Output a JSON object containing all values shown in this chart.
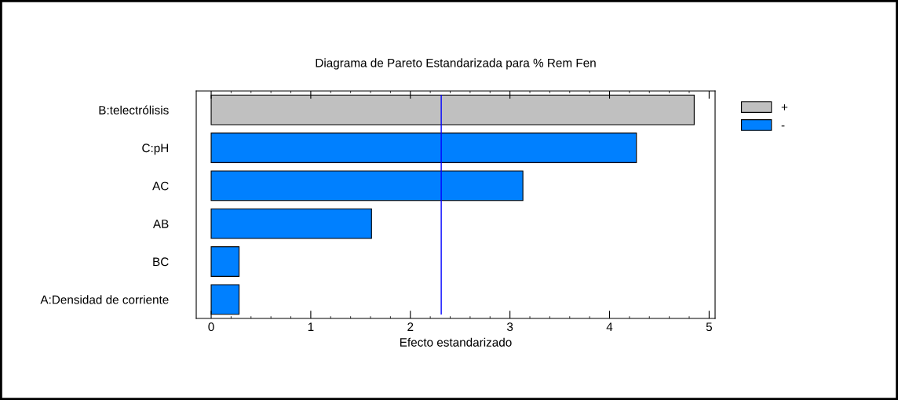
{
  "chart_data": {
    "type": "bar",
    "orientation": "horizontal",
    "title": "Diagrama de Pareto Estandarizada para % Rem Fen",
    "xlabel": "Efecto estandarizado",
    "categories": [
      "B:telectrólisis",
      "C:pH",
      "AC",
      "AB",
      "BC",
      "A:Densidad de corriente"
    ],
    "series": [
      {
        "name": "+",
        "color": "#c0c0c0",
        "values": [
          4.85,
          null,
          null,
          null,
          null,
          null
        ]
      },
      {
        "name": "-",
        "color": "#0080ff",
        "values": [
          null,
          4.27,
          3.13,
          1.61,
          0.28,
          0.28
        ]
      }
    ],
    "xlim": [
      -0.15,
      5.06
    ],
    "xticks": [
      0,
      1,
      2,
      3,
      4,
      5
    ],
    "ref_lines": [
      {
        "axis": "x",
        "value": 2.31,
        "color": "#0000ff"
      }
    ],
    "legend": "right",
    "grid": false
  }
}
